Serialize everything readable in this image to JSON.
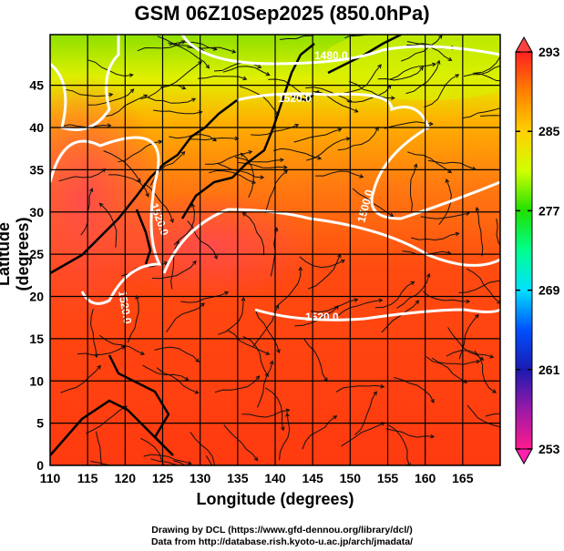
{
  "title": "GSM 06Z10Sep2025 (850.0hPa)",
  "xlabel": "Longitude (degrees)",
  "ylabel": "Latitude  (degrees)",
  "credits": [
    "Drawing by DCL (https://www.gfd-dennou.org/library/dcl/)",
    "Data from http://database.rish.kyoto-u.ac.jp/arch/jmadata/"
  ],
  "chart_data": {
    "type": "heatmap",
    "title": "GSM 06Z10Sep2025 (850.0hPa)",
    "xlabel": "Longitude (degrees)",
    "ylabel": "Latitude  (degrees)",
    "xlim": [
      110,
      170
    ],
    "ylim": [
      0,
      51
    ],
    "xticks": [
      "110",
      "115",
      "120",
      "125",
      "130",
      "135",
      "140",
      "145",
      "150",
      "155",
      "160",
      "165"
    ],
    "yticks": [
      "0",
      "5",
      "10",
      "15",
      "20",
      "25",
      "30",
      "35",
      "40",
      "45"
    ],
    "grid": true,
    "colorbar": {
      "min": 253,
      "max": 293,
      "ticks": [
        "293",
        "285",
        "277",
        "269",
        "261",
        "253"
      ],
      "colors": [
        "#ff1a8c",
        "#9a1aa8",
        "#1a1ab0",
        "#0050ff",
        "#00e0ff",
        "#00ff90",
        "#20e000",
        "#d0ff00",
        "#ffd000",
        "#ff8000",
        "#ff2020"
      ]
    },
    "contour_labels": [
      "1480.0",
      "1520.0",
      "1500.0",
      "1520.0",
      "1520.0",
      "1520.0"
    ]
  }
}
